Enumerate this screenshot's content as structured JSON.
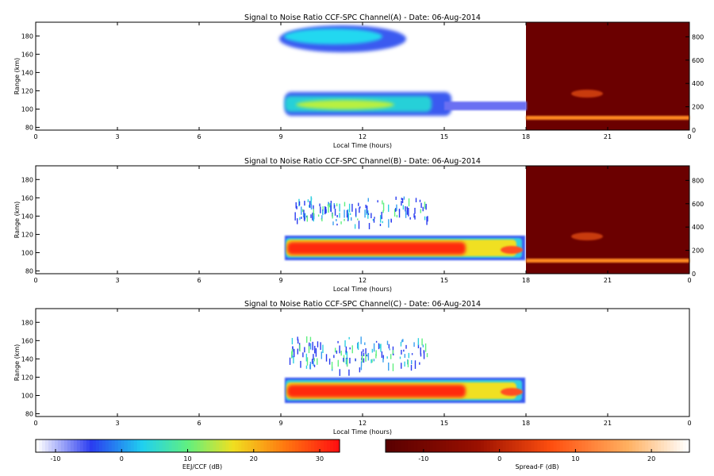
{
  "chart_data": [
    {
      "type": "heatmap",
      "title": "Signal to Noise Ratio CCF-SPC Channel(A) - Date: 06-Aug-2014",
      "xlabel": "Local Time (hours)",
      "ylabel": "Range (km)",
      "xlim": [
        0,
        24
      ],
      "ylim": [
        77,
        195
      ],
      "x_ticks": [
        "0",
        "3",
        "6",
        "9",
        "12",
        "15",
        "18",
        "21",
        "0"
      ],
      "y_ticks": [
        80,
        100,
        120,
        140,
        160,
        180
      ],
      "right_axis": {
        "ylim": [
          0,
          925
        ],
        "ticks": [
          0,
          200,
          400,
          600,
          800
        ]
      },
      "spread_f_panel": {
        "x_start": 18,
        "x_end": 24,
        "base_level_db": -12,
        "bottom_layer_range_right": [
          65,
          90
        ],
        "patch_range_right": [
          200,
          330
        ],
        "patch_x": [
          19.7,
          21.0
        ]
      },
      "regions": [
        {
          "layer": "E-region top",
          "x_start": 9.1,
          "x_end": 14.4,
          "range": [
            162,
            190
          ],
          "peak_snr_db": 0
        },
        {
          "layer": "E-region",
          "x_start": 9.1,
          "x_end": 17.95,
          "range": [
            94,
            118
          ],
          "peak_snr_db": 12
        }
      ]
    },
    {
      "type": "heatmap",
      "title": "Signal to Noise Ratio CCF-SPC Channel(B) - Date: 06-Aug-2014",
      "xlabel": "Local Time (hours)",
      "ylabel": "Range (km)",
      "xlim": [
        0,
        24
      ],
      "ylim": [
        77,
        195
      ],
      "x_ticks": [
        "0",
        "3",
        "6",
        "9",
        "12",
        "15",
        "18",
        "21",
        "0"
      ],
      "y_ticks": [
        80,
        100,
        120,
        140,
        160,
        180
      ],
      "right_axis": {
        "ylim": [
          0,
          925
        ],
        "ticks": [
          0,
          200,
          400,
          600,
          800
        ]
      },
      "spread_f_panel": {
        "x_start": 18,
        "x_end": 24,
        "base_level_db": -12,
        "bottom_layer_range_right": [
          65,
          90
        ],
        "patch_range_right": [
          200,
          330
        ],
        "patch_x": [
          19.7,
          21.0
        ]
      },
      "regions": [
        {
          "layer": "E-region",
          "x_start": 9.1,
          "x_end": 17.95,
          "range": [
            93,
            117
          ],
          "peak_snr_db": 30
        },
        {
          "layer": "echoes",
          "x_start": 9.5,
          "x_end": 14.5,
          "range": [
            136,
            162
          ],
          "peak_snr_db": -5
        }
      ]
    },
    {
      "type": "heatmap",
      "title": "Signal to Noise Ratio CCF-SPC Channel(C) - Date: 06-Aug-2014",
      "xlabel": "Local Time (hours)",
      "ylabel": "Range (km)",
      "xlim": [
        0,
        24
      ],
      "ylim": [
        77,
        195
      ],
      "x_ticks": [
        "0",
        "3",
        "6",
        "9",
        "12",
        "15",
        "18",
        "21",
        "0"
      ],
      "y_ticks": [
        80,
        100,
        120,
        140,
        160,
        180
      ],
      "regions": [
        {
          "layer": "E-region",
          "x_start": 9.1,
          "x_end": 17.95,
          "range": [
            93,
            117
          ],
          "peak_snr_db": 30
        },
        {
          "layer": "echoes",
          "x_start": 9.3,
          "x_end": 14.4,
          "range": [
            134,
            165
          ],
          "peak_snr_db": -5
        }
      ]
    }
  ],
  "colorbars": [
    {
      "label": "EEJ/CCF (dB)",
      "ticks": [
        "-10",
        "0",
        "10",
        "20",
        "30"
      ],
      "range": [
        -13,
        33
      ],
      "colormap": "jet-white"
    },
    {
      "label": "Spread-F (dB)",
      "ticks": [
        "-10",
        "0",
        "10",
        "20"
      ],
      "range": [
        -15,
        25
      ],
      "colormap": "hot"
    }
  ]
}
